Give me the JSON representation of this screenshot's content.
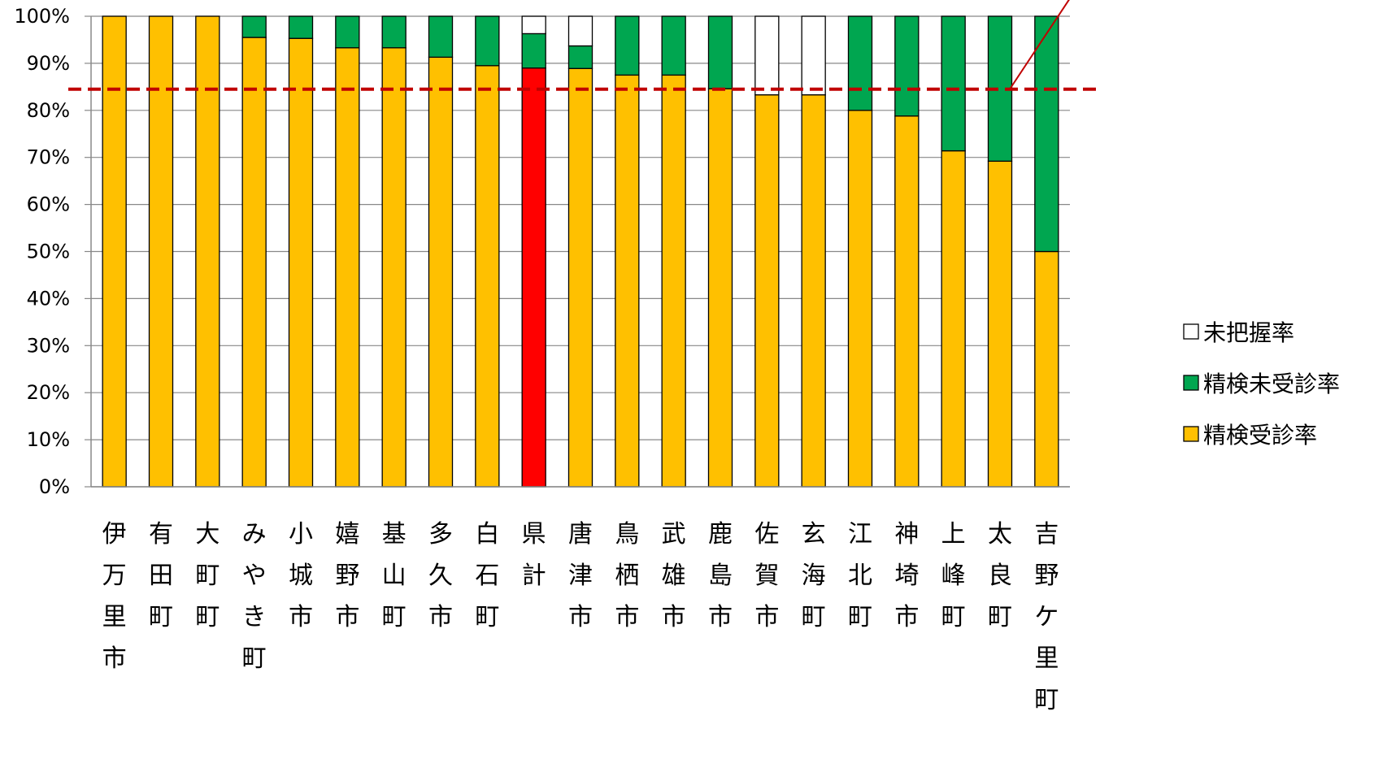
{
  "chart_data": {
    "type": "bar",
    "stacked": true,
    "percent": true,
    "title": "",
    "xlabel": "",
    "ylabel": "",
    "ylim": [
      0,
      100
    ],
    "yticks": [
      "0%",
      "10%",
      "20%",
      "30%",
      "40%",
      "50%",
      "60%",
      "70%",
      "80%",
      "90%",
      "100%"
    ],
    "grid": true,
    "legend_position": "right",
    "categories": [
      "伊万里市",
      "有田町",
      "大町町",
      "みやき町",
      "小城市",
      "嬉野市",
      "基山町",
      "多久市",
      "白石町",
      "県計",
      "唐津市",
      "鳥栖市",
      "武雄市",
      "鹿島市",
      "佐賀市",
      "玄海町",
      "江北町",
      "神埼市",
      "上峰町",
      "太良町",
      "吉野ケ里町"
    ],
    "highlight_category": "県計",
    "highlight_color": "#ff0000",
    "series": [
      {
        "name": "精検受診率",
        "color": "#ffc000",
        "values": [
          100,
          100,
          100,
          95.5,
          95.3,
          93.3,
          93.3,
          91.3,
          89.5,
          89.0,
          88.9,
          87.5,
          87.5,
          84.6,
          83.3,
          83.3,
          80.0,
          78.8,
          71.4,
          69.2,
          50.0
        ]
      },
      {
        "name": "精検未受診率",
        "color": "#00a650",
        "values": [
          0,
          0,
          0,
          4.5,
          4.7,
          6.7,
          6.7,
          8.7,
          10.5,
          7.3,
          4.8,
          12.5,
          12.5,
          15.4,
          0,
          0,
          20.0,
          21.2,
          28.6,
          30.8,
          50.0
        ]
      },
      {
        "name": "未把握率",
        "color": "#ffffff",
        "values": [
          0,
          0,
          0,
          0,
          0,
          0,
          0,
          0,
          0,
          3.7,
          6.3,
          0,
          0,
          0,
          16.7,
          16.7,
          0,
          0,
          0,
          0,
          0
        ]
      }
    ],
    "legend_order": [
      "未把握率",
      "精検未受診率",
      "精検受診率"
    ],
    "reference_line": {
      "value": 84.5,
      "color": "#c00000",
      "style": "dashed"
    },
    "annotation_pointer": {
      "color": "#c00000"
    }
  }
}
